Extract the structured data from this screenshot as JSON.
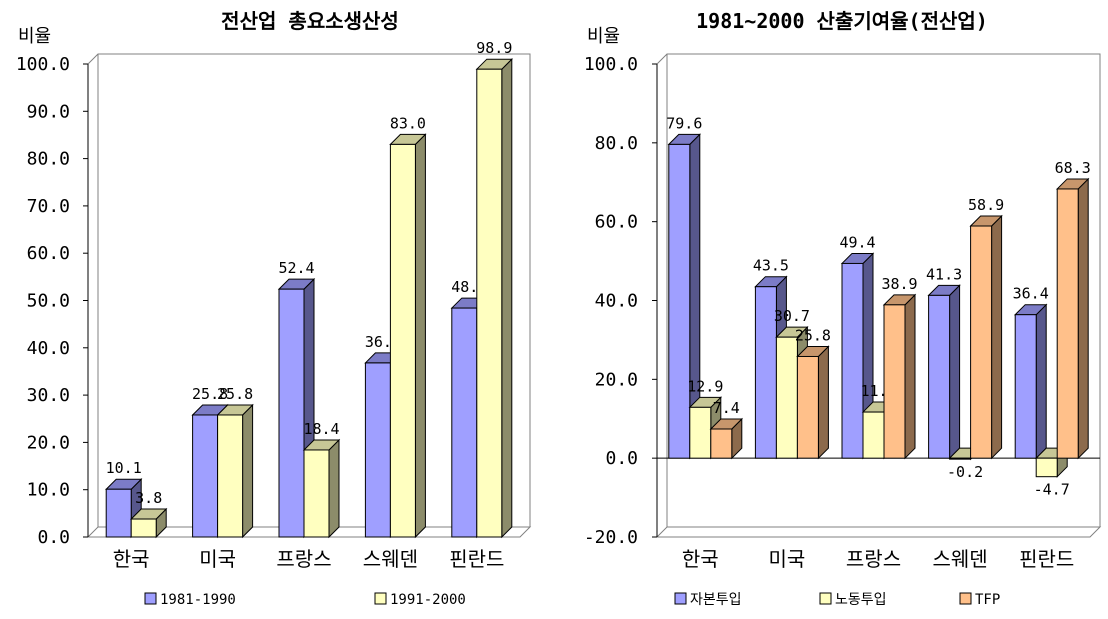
{
  "chart_data": [
    {
      "type": "bar",
      "title": "전산업 총요소생산성",
      "ylabel": "비율",
      "xlabel": "",
      "ylim": [
        0,
        100
      ],
      "yticks": [
        "0.0",
        "10.0",
        "20.0",
        "30.0",
        "40.0",
        "50.0",
        "60.0",
        "70.0",
        "80.0",
        "90.0",
        "100.0"
      ],
      "categories": [
        "한국",
        "미국",
        "프랑스",
        "스웨덴",
        "핀란드"
      ],
      "series": [
        {
          "name": "1981-1990",
          "color": "#9f9fff",
          "values": [
            10.1,
            25.8,
            52.4,
            36.8,
            48.4
          ],
          "labels": [
            "10.1",
            "25.8",
            "52.4",
            "36.8",
            "48.4"
          ]
        },
        {
          "name": "1991-2000",
          "color": "#ffffc0",
          "values": [
            3.8,
            25.8,
            18.4,
            83.0,
            98.9
          ],
          "labels": [
            "3.8",
            "25.8",
            "18.4",
            "83.0",
            "98.9"
          ]
        }
      ],
      "legend_position": "bottom",
      "grid": false,
      "style": "3d-bar"
    },
    {
      "type": "bar",
      "title": "1981~2000 산출기여율(전산업)",
      "ylabel": "비율",
      "xlabel": "",
      "ylim": [
        -20,
        100
      ],
      "yticks": [
        "-20.0",
        "0.0",
        "20.0",
        "40.0",
        "60.0",
        "80.0",
        "100.0"
      ],
      "categories": [
        "한국",
        "미국",
        "프랑스",
        "스웨덴",
        "핀란드"
      ],
      "series": [
        {
          "name": "자본투입",
          "color": "#9f9fff",
          "values": [
            79.6,
            43.5,
            49.4,
            41.3,
            36.4
          ],
          "labels": [
            "79.6",
            "43.5",
            "49.4",
            "41.3",
            "36.4"
          ]
        },
        {
          "name": "노동투입",
          "color": "#ffffc0",
          "values": [
            12.9,
            30.7,
            11.7,
            -0.2,
            -4.7
          ],
          "labels": [
            "12.9",
            "30.7",
            "11.7",
            "-0.2",
            "-4.7"
          ]
        },
        {
          "name": "TFP",
          "color": "#ffc08a",
          "values": [
            7.4,
            25.8,
            38.9,
            58.9,
            68.3
          ],
          "labels": [
            "7.4",
            "25.8",
            "38.9",
            "58.9",
            "68.3"
          ]
        }
      ],
      "legend_position": "bottom",
      "grid": false,
      "style": "3d-bar"
    }
  ]
}
